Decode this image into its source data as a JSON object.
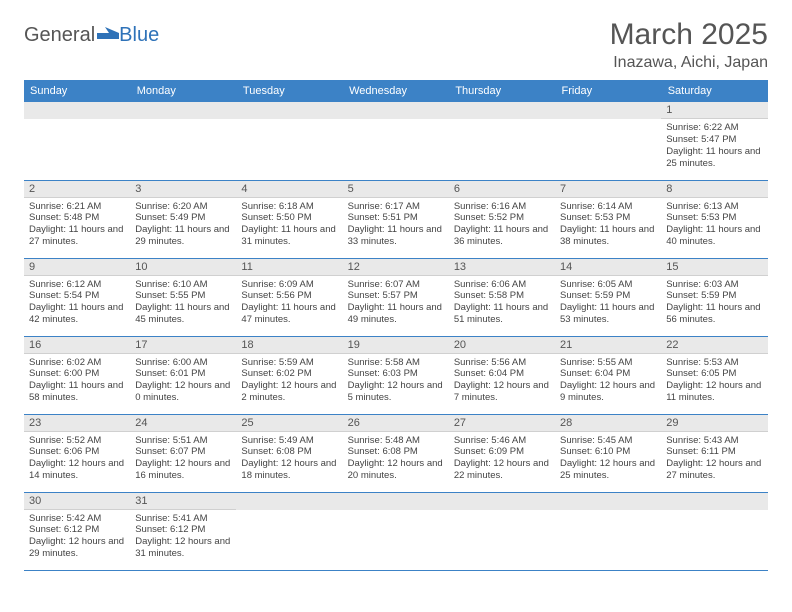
{
  "logo": {
    "part1": "General",
    "part2": "Blue"
  },
  "title": {
    "month": "March 2025",
    "location": "Inazawa, Aichi, Japan"
  },
  "colors": {
    "header_bg": "#3c82c6",
    "header_text": "#ffffff",
    "dayhead_bg": "#e9e9e9",
    "border": "#3c82c6",
    "logo_blue": "#2e72b8",
    "text": "#444444"
  },
  "day_labels": [
    "Sunday",
    "Monday",
    "Tuesday",
    "Wednesday",
    "Thursday",
    "Friday",
    "Saturday"
  ],
  "weeks": [
    [
      null,
      null,
      null,
      null,
      null,
      null,
      {
        "n": "1",
        "sunrise": "Sunrise: 6:22 AM",
        "sunset": "Sunset: 5:47 PM",
        "daylight": "Daylight: 11 hours and 25 minutes."
      }
    ],
    [
      {
        "n": "2",
        "sunrise": "Sunrise: 6:21 AM",
        "sunset": "Sunset: 5:48 PM",
        "daylight": "Daylight: 11 hours and 27 minutes."
      },
      {
        "n": "3",
        "sunrise": "Sunrise: 6:20 AM",
        "sunset": "Sunset: 5:49 PM",
        "daylight": "Daylight: 11 hours and 29 minutes."
      },
      {
        "n": "4",
        "sunrise": "Sunrise: 6:18 AM",
        "sunset": "Sunset: 5:50 PM",
        "daylight": "Daylight: 11 hours and 31 minutes."
      },
      {
        "n": "5",
        "sunrise": "Sunrise: 6:17 AM",
        "sunset": "Sunset: 5:51 PM",
        "daylight": "Daylight: 11 hours and 33 minutes."
      },
      {
        "n": "6",
        "sunrise": "Sunrise: 6:16 AM",
        "sunset": "Sunset: 5:52 PM",
        "daylight": "Daylight: 11 hours and 36 minutes."
      },
      {
        "n": "7",
        "sunrise": "Sunrise: 6:14 AM",
        "sunset": "Sunset: 5:53 PM",
        "daylight": "Daylight: 11 hours and 38 minutes."
      },
      {
        "n": "8",
        "sunrise": "Sunrise: 6:13 AM",
        "sunset": "Sunset: 5:53 PM",
        "daylight": "Daylight: 11 hours and 40 minutes."
      }
    ],
    [
      {
        "n": "9",
        "sunrise": "Sunrise: 6:12 AM",
        "sunset": "Sunset: 5:54 PM",
        "daylight": "Daylight: 11 hours and 42 minutes."
      },
      {
        "n": "10",
        "sunrise": "Sunrise: 6:10 AM",
        "sunset": "Sunset: 5:55 PM",
        "daylight": "Daylight: 11 hours and 45 minutes."
      },
      {
        "n": "11",
        "sunrise": "Sunrise: 6:09 AM",
        "sunset": "Sunset: 5:56 PM",
        "daylight": "Daylight: 11 hours and 47 minutes."
      },
      {
        "n": "12",
        "sunrise": "Sunrise: 6:07 AM",
        "sunset": "Sunset: 5:57 PM",
        "daylight": "Daylight: 11 hours and 49 minutes."
      },
      {
        "n": "13",
        "sunrise": "Sunrise: 6:06 AM",
        "sunset": "Sunset: 5:58 PM",
        "daylight": "Daylight: 11 hours and 51 minutes."
      },
      {
        "n": "14",
        "sunrise": "Sunrise: 6:05 AM",
        "sunset": "Sunset: 5:59 PM",
        "daylight": "Daylight: 11 hours and 53 minutes."
      },
      {
        "n": "15",
        "sunrise": "Sunrise: 6:03 AM",
        "sunset": "Sunset: 5:59 PM",
        "daylight": "Daylight: 11 hours and 56 minutes."
      }
    ],
    [
      {
        "n": "16",
        "sunrise": "Sunrise: 6:02 AM",
        "sunset": "Sunset: 6:00 PM",
        "daylight": "Daylight: 11 hours and 58 minutes."
      },
      {
        "n": "17",
        "sunrise": "Sunrise: 6:00 AM",
        "sunset": "Sunset: 6:01 PM",
        "daylight": "Daylight: 12 hours and 0 minutes."
      },
      {
        "n": "18",
        "sunrise": "Sunrise: 5:59 AM",
        "sunset": "Sunset: 6:02 PM",
        "daylight": "Daylight: 12 hours and 2 minutes."
      },
      {
        "n": "19",
        "sunrise": "Sunrise: 5:58 AM",
        "sunset": "Sunset: 6:03 PM",
        "daylight": "Daylight: 12 hours and 5 minutes."
      },
      {
        "n": "20",
        "sunrise": "Sunrise: 5:56 AM",
        "sunset": "Sunset: 6:04 PM",
        "daylight": "Daylight: 12 hours and 7 minutes."
      },
      {
        "n": "21",
        "sunrise": "Sunrise: 5:55 AM",
        "sunset": "Sunset: 6:04 PM",
        "daylight": "Daylight: 12 hours and 9 minutes."
      },
      {
        "n": "22",
        "sunrise": "Sunrise: 5:53 AM",
        "sunset": "Sunset: 6:05 PM",
        "daylight": "Daylight: 12 hours and 11 minutes."
      }
    ],
    [
      {
        "n": "23",
        "sunrise": "Sunrise: 5:52 AM",
        "sunset": "Sunset: 6:06 PM",
        "daylight": "Daylight: 12 hours and 14 minutes."
      },
      {
        "n": "24",
        "sunrise": "Sunrise: 5:51 AM",
        "sunset": "Sunset: 6:07 PM",
        "daylight": "Daylight: 12 hours and 16 minutes."
      },
      {
        "n": "25",
        "sunrise": "Sunrise: 5:49 AM",
        "sunset": "Sunset: 6:08 PM",
        "daylight": "Daylight: 12 hours and 18 minutes."
      },
      {
        "n": "26",
        "sunrise": "Sunrise: 5:48 AM",
        "sunset": "Sunset: 6:08 PM",
        "daylight": "Daylight: 12 hours and 20 minutes."
      },
      {
        "n": "27",
        "sunrise": "Sunrise: 5:46 AM",
        "sunset": "Sunset: 6:09 PM",
        "daylight": "Daylight: 12 hours and 22 minutes."
      },
      {
        "n": "28",
        "sunrise": "Sunrise: 5:45 AM",
        "sunset": "Sunset: 6:10 PM",
        "daylight": "Daylight: 12 hours and 25 minutes."
      },
      {
        "n": "29",
        "sunrise": "Sunrise: 5:43 AM",
        "sunset": "Sunset: 6:11 PM",
        "daylight": "Daylight: 12 hours and 27 minutes."
      }
    ],
    [
      {
        "n": "30",
        "sunrise": "Sunrise: 5:42 AM",
        "sunset": "Sunset: 6:12 PM",
        "daylight": "Daylight: 12 hours and 29 minutes."
      },
      {
        "n": "31",
        "sunrise": "Sunrise: 5:41 AM",
        "sunset": "Sunset: 6:12 PM",
        "daylight": "Daylight: 12 hours and 31 minutes."
      },
      null,
      null,
      null,
      null,
      null
    ]
  ]
}
